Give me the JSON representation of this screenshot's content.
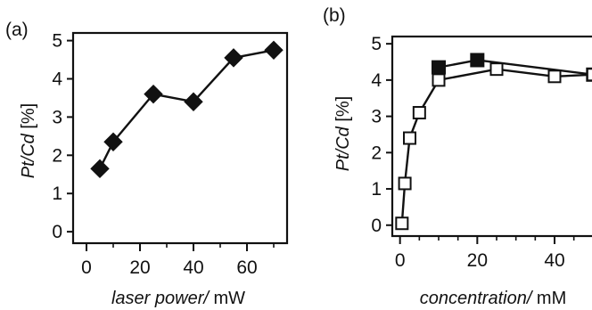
{
  "chart_data": [
    {
      "type": "line",
      "panel_label": "(a)",
      "xlabel_italic": "laser power/",
      "xlabel_unit": " mW",
      "ylabel_italic": "Pt/Cd",
      "ylabel_unit": " [%]",
      "xlim": [
        -5,
        75
      ],
      "ylim": [
        -0.3,
        5.2
      ],
      "xticks": [
        0,
        20,
        40,
        60
      ],
      "yticks": [
        0,
        1,
        2,
        3,
        4,
        5
      ],
      "grid": false,
      "series": [
        {
          "marker": "filled-diamond",
          "x": [
            5,
            10,
            25,
            40,
            55,
            70
          ],
          "y": [
            1.65,
            2.35,
            3.6,
            3.4,
            4.55,
            4.75
          ]
        }
      ]
    },
    {
      "type": "line",
      "panel_label": "(b)",
      "xlabel_italic": "concentration/",
      "xlabel_unit": " mM",
      "ylabel_italic": "Pt/Cd",
      "ylabel_unit": " [%]",
      "xlim": [
        -2,
        52
      ],
      "ylim": [
        -0.3,
        5.2
      ],
      "xticks": [
        0,
        20,
        40
      ],
      "yticks": [
        0,
        1,
        2,
        3,
        4,
        5
      ],
      "grid": false,
      "series": [
        {
          "marker": "filled-square",
          "x": [
            10,
            20,
            50
          ],
          "y": [
            4.35,
            4.55,
            4.15
          ]
        },
        {
          "marker": "open-square",
          "x": [
            0.5,
            1.25,
            2.5,
            5,
            10,
            25,
            40,
            50
          ],
          "y": [
            0.05,
            1.15,
            2.4,
            3.1,
            4.0,
            4.3,
            4.1,
            4.15
          ]
        }
      ]
    }
  ]
}
